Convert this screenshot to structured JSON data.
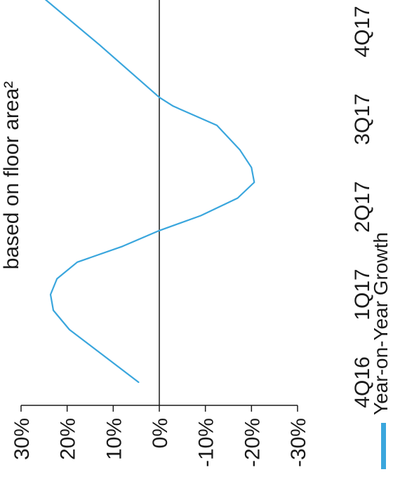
{
  "chart_data": {
    "type": "line",
    "orientation": "rotated 90 degrees counter-clockwise",
    "title": "based on floor area²",
    "x": [
      "4Q16",
      "1Q17",
      "2Q17",
      "3Q17",
      "4Q17"
    ],
    "ylim": [
      -30,
      30
    ],
    "y_ticks": [
      "30%",
      "20%",
      "10%",
      "0%",
      "-10%",
      "-20%",
      "-30%"
    ],
    "series": [
      {
        "name": "Year-on-Year Growth",
        "color": "#3aa6dd",
        "points": [
          {
            "x": 0.0,
            "y": 4.5
          },
          {
            "x": 0.3,
            "y": 12.0
          },
          {
            "x": 0.6,
            "y": 19.5
          },
          {
            "x": 0.82,
            "y": 23.0
          },
          {
            "x": 1.0,
            "y": 23.6
          },
          {
            "x": 1.18,
            "y": 22.2
          },
          {
            "x": 1.37,
            "y": 17.8
          },
          {
            "x": 1.55,
            "y": 8.0
          },
          {
            "x": 1.73,
            "y": 0.0
          },
          {
            "x": 1.9,
            "y": -9.0
          },
          {
            "x": 2.1,
            "y": -17.0
          },
          {
            "x": 2.28,
            "y": -20.6
          },
          {
            "x": 2.45,
            "y": -20.0
          },
          {
            "x": 2.65,
            "y": -17.5
          },
          {
            "x": 2.93,
            "y": -12.5
          },
          {
            "x": 3.15,
            "y": -3.0
          },
          {
            "x": 3.25,
            "y": 0.0
          },
          {
            "x": 3.85,
            "y": 13.0
          },
          {
            "x": 4.4,
            "y": 25.5
          }
        ]
      }
    ],
    "zero_line": true,
    "legend_position": "bottom"
  }
}
